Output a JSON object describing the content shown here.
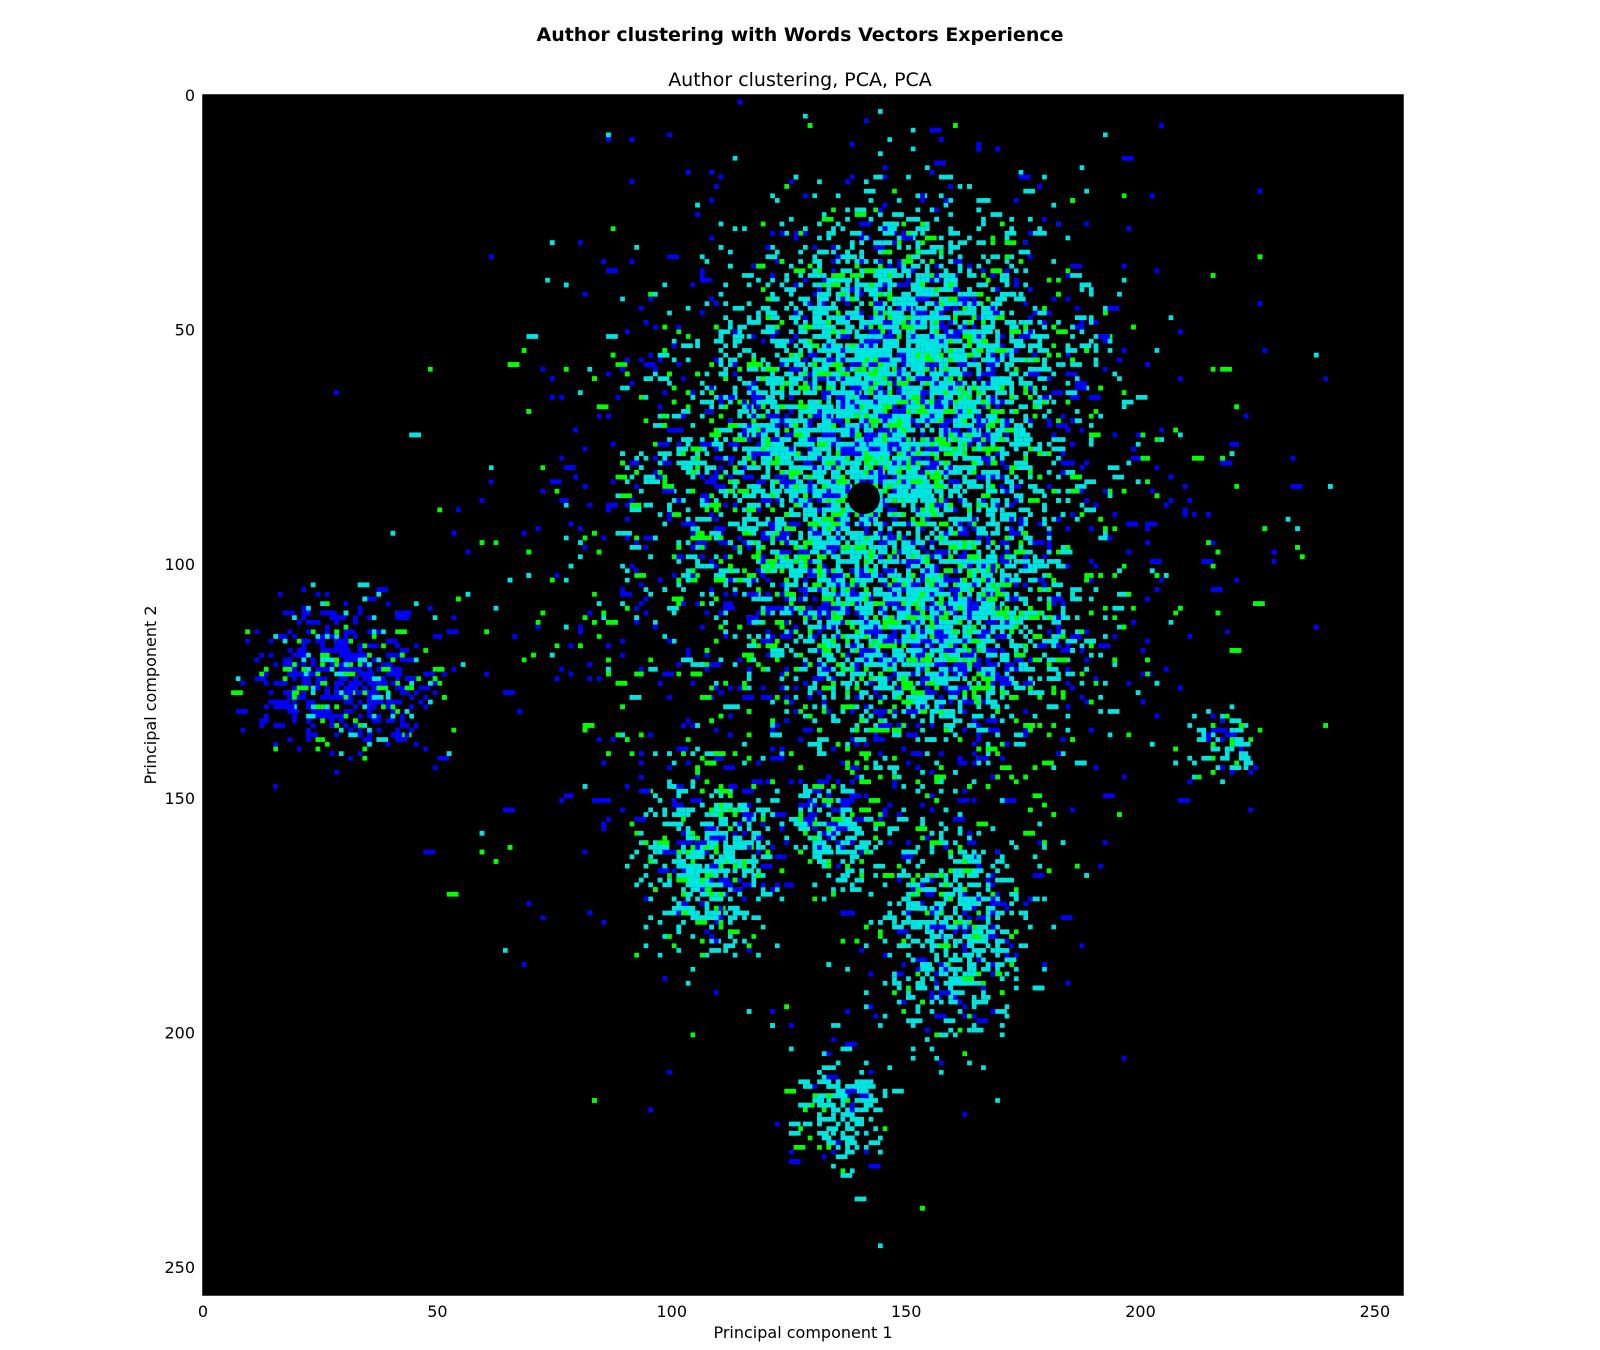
{
  "figure": {
    "suptitle": "Author clustering with Words Vectors Experience",
    "colors": {
      "background": "#000000",
      "blue": "#0000ff",
      "green": "#00ff00",
      "cyan": "#00e5e0"
    }
  },
  "chart_data": {
    "type": "heatmap",
    "title": "Author clustering, PCA, PCA",
    "xlabel": "Principal component 1",
    "ylabel": "Principal component 2",
    "xlim": [
      0,
      256
    ],
    "ylim": [
      256,
      0
    ],
    "x_ticks": [
      0,
      50,
      100,
      150,
      200,
      250
    ],
    "y_ticks": [
      0,
      50,
      100,
      150,
      200,
      250
    ],
    "grid": false,
    "clusters": [
      {
        "cx": 140,
        "cy": 80,
        "rx": 38,
        "ry": 34,
        "color": "cyan"
      },
      {
        "cx": 150,
        "cy": 55,
        "rx": 30,
        "ry": 28,
        "color": "cyan"
      },
      {
        "cx": 155,
        "cy": 115,
        "rx": 28,
        "ry": 22,
        "color": "cyan"
      },
      {
        "cx": 108,
        "cy": 163,
        "rx": 13,
        "ry": 17,
        "color": "cyan"
      },
      {
        "cx": 160,
        "cy": 178,
        "rx": 14,
        "ry": 20,
        "color": "cyan"
      },
      {
        "cx": 135,
        "cy": 157,
        "rx": 8,
        "ry": 10,
        "color": "cyan"
      },
      {
        "cx": 136,
        "cy": 217,
        "rx": 8,
        "ry": 12,
        "color": "cyan"
      },
      {
        "cx": 218,
        "cy": 138,
        "rx": 6,
        "ry": 6,
        "color": "cyan"
      },
      {
        "cx": 30,
        "cy": 125,
        "rx": 18,
        "ry": 14,
        "color": "blue"
      },
      {
        "cx": 140,
        "cy": 100,
        "rx": 65,
        "ry": 70,
        "color": "mixed"
      }
    ]
  }
}
